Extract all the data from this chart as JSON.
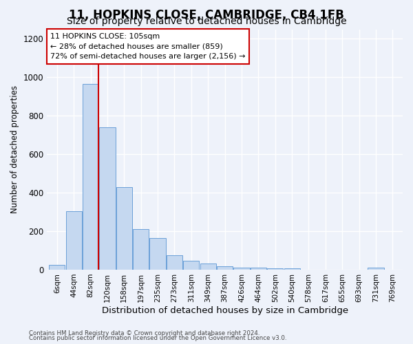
{
  "title1": "11, HOPKINS CLOSE, CAMBRIDGE, CB4 1FB",
  "title2": "Size of property relative to detached houses in Cambridge",
  "xlabel": "Distribution of detached houses by size in Cambridge",
  "ylabel": "Number of detached properties",
  "categories": [
    "6sqm",
    "44sqm",
    "82sqm",
    "120sqm",
    "158sqm",
    "197sqm",
    "235sqm",
    "273sqm",
    "311sqm",
    "349sqm",
    "387sqm",
    "426sqm",
    "464sqm",
    "502sqm",
    "540sqm",
    "578sqm",
    "617sqm",
    "655sqm",
    "693sqm",
    "731sqm",
    "769sqm"
  ],
  "values": [
    25,
    305,
    965,
    740,
    430,
    210,
    165,
    75,
    48,
    32,
    18,
    10,
    10,
    8,
    8,
    0,
    0,
    0,
    0,
    12,
    0
  ],
  "bar_color": "#c5d8f0",
  "bar_edge_color": "#6a9fd8",
  "vline_color": "#cc0000",
  "annotation_text": "11 HOPKINS CLOSE: 105sqm\n← 28% of detached houses are smaller (859)\n72% of semi-detached houses are larger (2,156) →",
  "annotation_box_color": "#ffffff",
  "annotation_box_edge": "#cc0000",
  "ylim": [
    0,
    1250
  ],
  "yticks": [
    0,
    200,
    400,
    600,
    800,
    1000,
    1200
  ],
  "footer1": "Contains HM Land Registry data © Crown copyright and database right 2024.",
  "footer2": "Contains public sector information licensed under the Open Government Licence v3.0.",
  "bg_color": "#eef2fa",
  "grid_color": "#ffffff",
  "title1_fontsize": 12,
  "title2_fontsize": 10
}
